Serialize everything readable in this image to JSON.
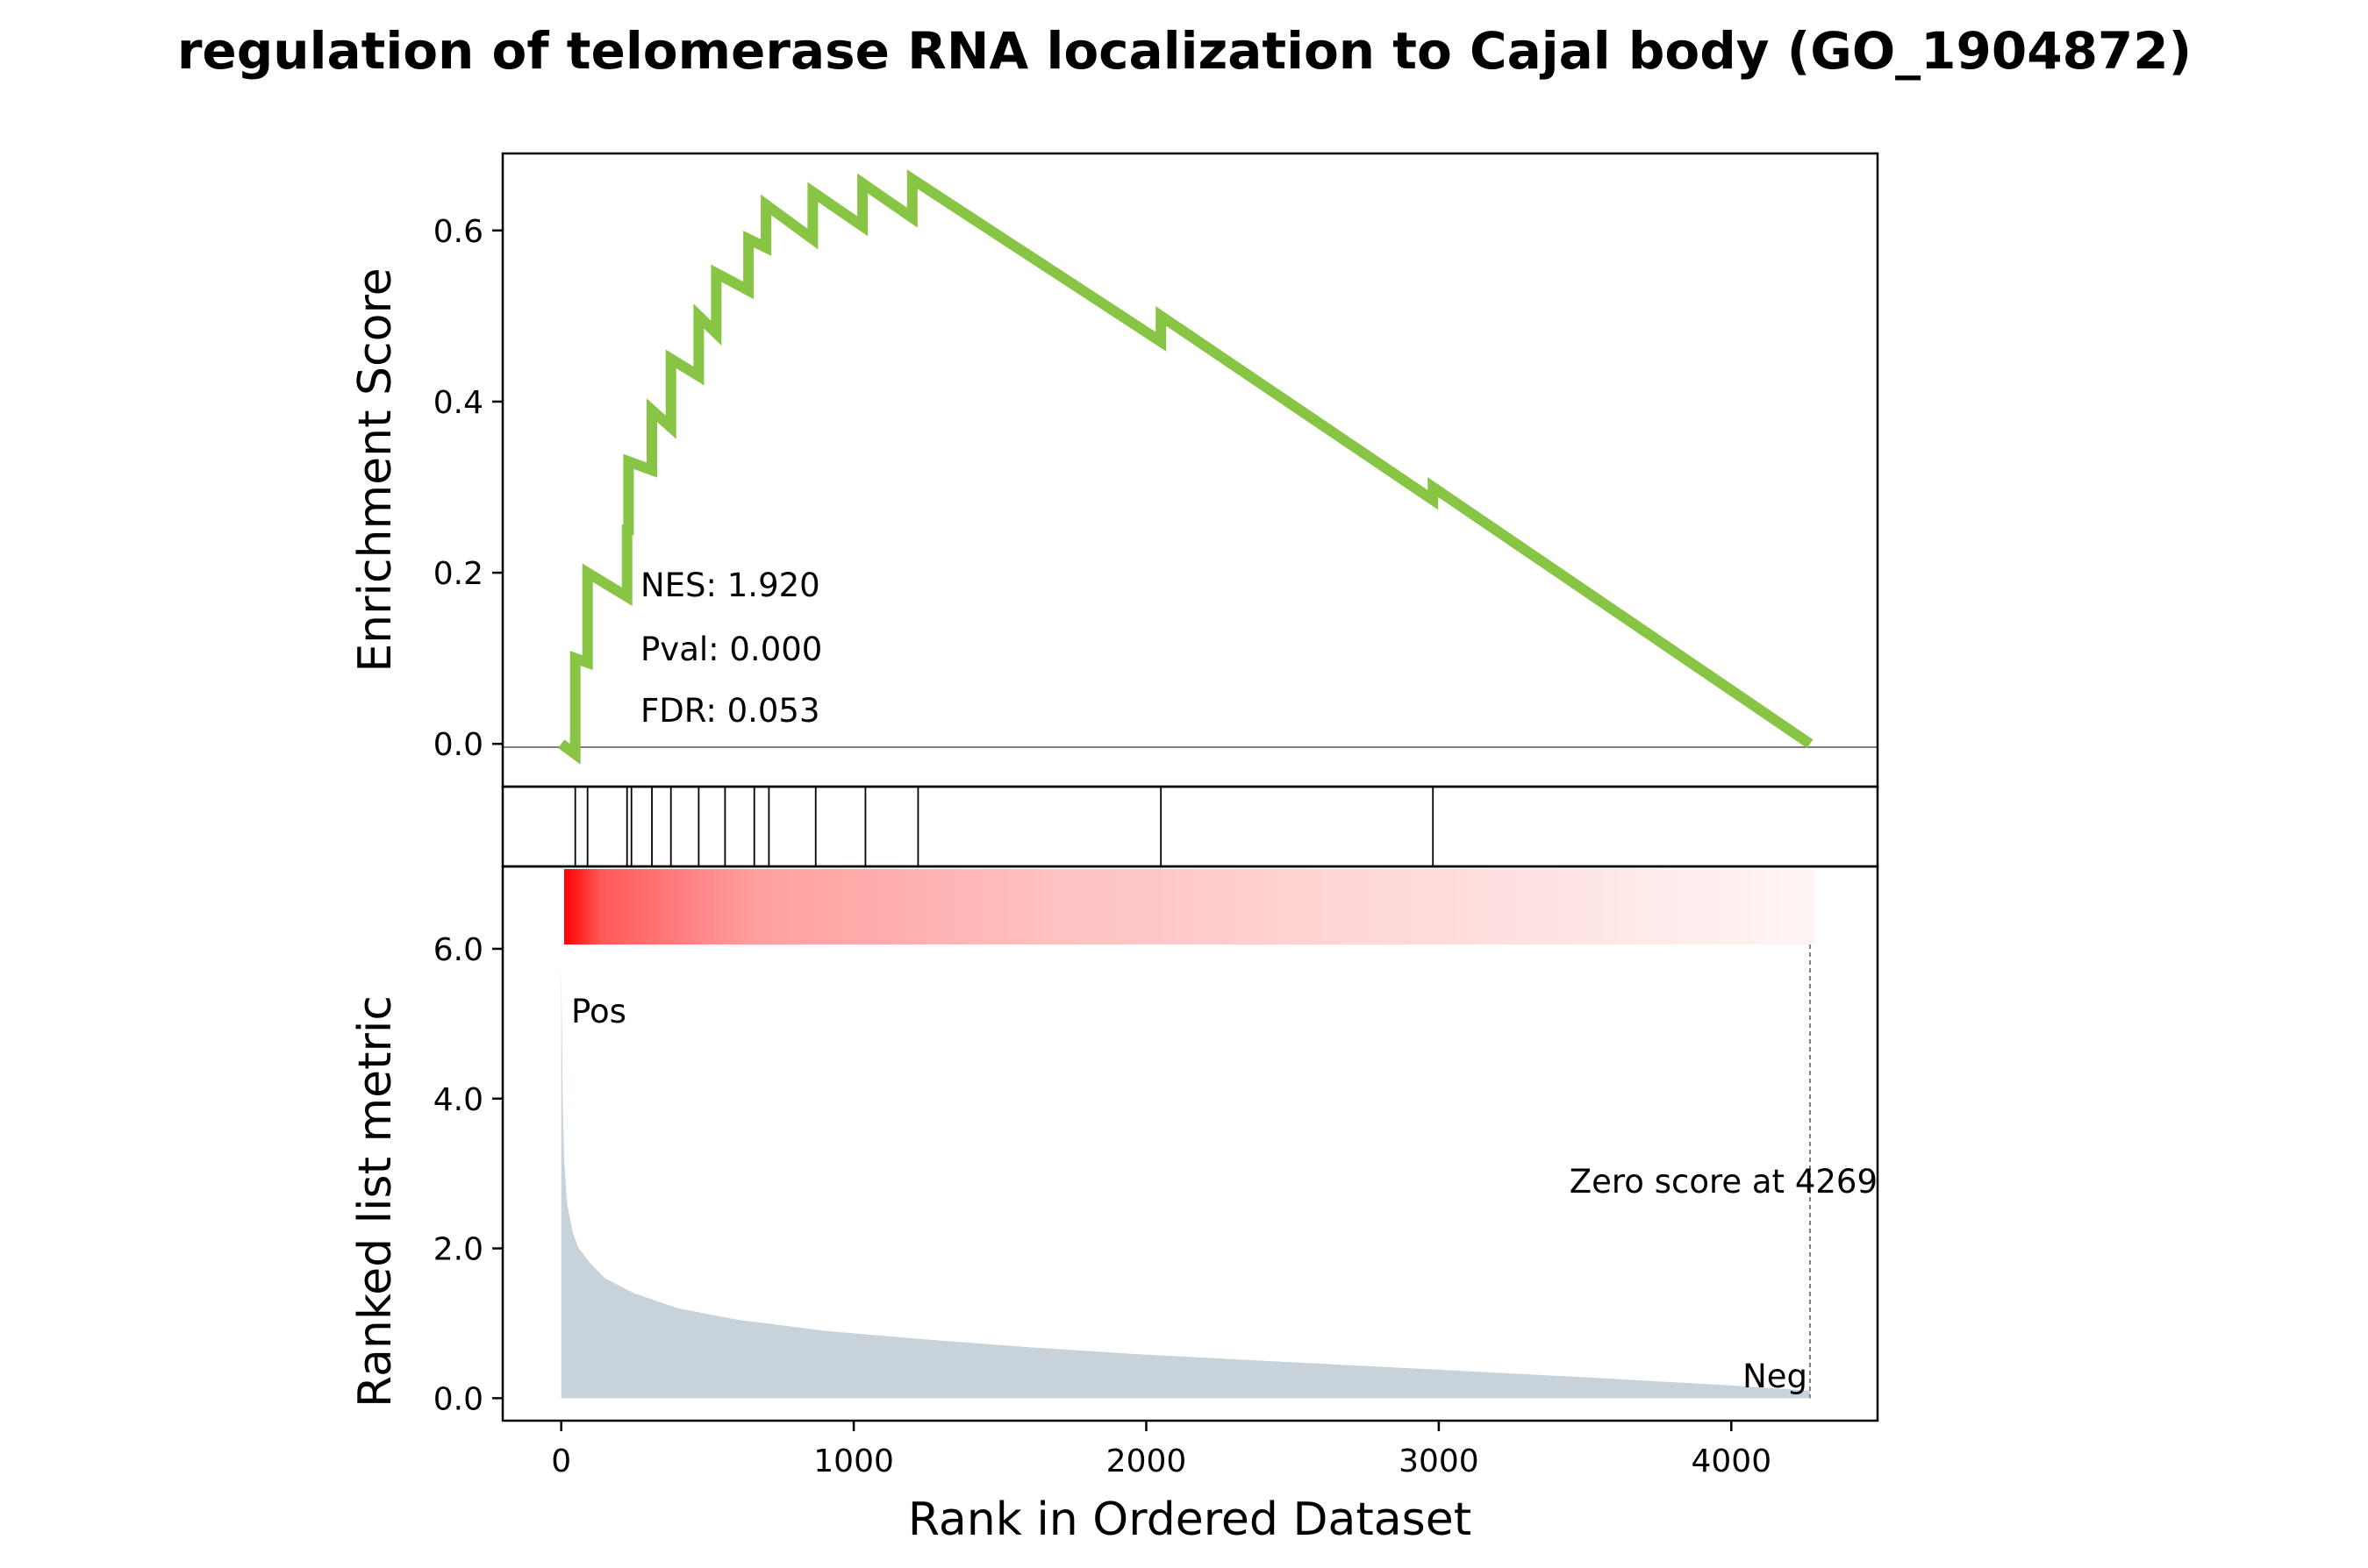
{
  "chart_data": {
    "type": "line",
    "title": "regulation of telomerase RNA localization to Cajal body (GO_1904872)",
    "xlabel": "Rank in Ordered Dataset",
    "xlim": [
      -200,
      4500
    ],
    "x_ticks": [
      0,
      1000,
      2000,
      3000,
      4000
    ],
    "x_tick_labels": [
      "0",
      "1000",
      "2000",
      "3000",
      "4000"
    ],
    "es_panel": {
      "ylabel": "Enrichment Score",
      "ylim": [
        -0.05,
        0.69
      ],
      "y_ticks": [
        0.0,
        0.2,
        0.4,
        0.6
      ],
      "y_tick_labels": [
        "0.0",
        "0.2",
        "0.4",
        "0.6"
      ],
      "line_color": "#88c544",
      "x": [
        0,
        48,
        48,
        90,
        90,
        225,
        225,
        230,
        230,
        310,
        310,
        375,
        375,
        470,
        470,
        530,
        530,
        640,
        640,
        700,
        700,
        860,
        860,
        1030,
        1030,
        1200,
        1200,
        2050,
        2050,
        2980,
        2980,
        4269
      ],
      "y": [
        0.0,
        -0.012,
        0.1,
        0.095,
        0.2,
        0.172,
        0.25,
        0.25,
        0.33,
        0.32,
        0.39,
        0.37,
        0.45,
        0.43,
        0.5,
        0.48,
        0.55,
        0.53,
        0.59,
        0.58,
        0.63,
        0.59,
        0.645,
        0.605,
        0.655,
        0.615,
        0.66,
        0.47,
        0.5,
        0.285,
        0.3,
        0.0
      ],
      "annotations": [
        "NES: 1.920",
        "Pval: 0.000",
        "FDR: 0.053"
      ]
    },
    "hits": [
      48,
      90,
      225,
      240,
      310,
      375,
      470,
      560,
      660,
      710,
      870,
      1040,
      1220,
      2050,
      2980
    ],
    "metric_panel": {
      "ylabel": "Ranked list metric",
      "ylim": [
        -0.3,
        7.1
      ],
      "y_ticks": [
        0.0,
        2.0,
        4.0,
        6.0
      ],
      "y_tick_labels": [
        "0.0",
        "2.0",
        "4.0",
        "6.0"
      ],
      "fill_color": "#c8d2db",
      "heatmap_color": "#ff0000",
      "x": [
        0,
        5,
        10,
        20,
        40,
        60,
        100,
        150,
        250,
        400,
        600,
        900,
        1200,
        1600,
        2000,
        2500,
        3000,
        3500,
        4000,
        4269
      ],
      "y": [
        5.8,
        4.0,
        3.2,
        2.6,
        2.2,
        2.0,
        1.8,
        1.6,
        1.4,
        1.2,
        1.05,
        0.9,
        0.8,
        0.68,
        0.58,
        0.48,
        0.38,
        0.28,
        0.17,
        0.1
      ],
      "pos_label": "Pos",
      "neg_label": "Neg",
      "pos_color": "#ff0000",
      "neg_color": "#0000ff",
      "zero_score_label": "Zero score at 4269",
      "zero_score_rank": 4269
    }
  }
}
